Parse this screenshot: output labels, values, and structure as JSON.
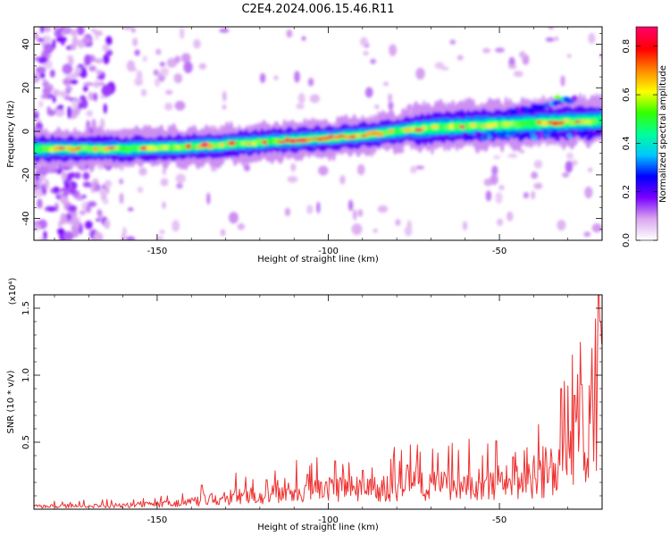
{
  "title": "C2E4.2024.006.15.46.R11",
  "chart_data": [
    {
      "type": "heatmap",
      "xlabel": "Height of straight line (km)",
      "ylabel": "Frequency (Hz)",
      "xlim": [
        -186,
        -20
      ],
      "ylim": [
        -50,
        48
      ],
      "x_ticks": [
        -150,
        -100,
        -50
      ],
      "y_ticks": [
        -40,
        -20,
        0,
        20,
        40
      ],
      "ridge": [
        [
          -186,
          -8
        ],
        [
          -160,
          -8
        ],
        [
          -140,
          -7
        ],
        [
          -120,
          -5
        ],
        [
          -100,
          -3
        ],
        [
          -85,
          -1
        ],
        [
          -75,
          1
        ],
        [
          -65,
          2
        ],
        [
          -50,
          3
        ],
        [
          -35,
          4
        ],
        [
          -20,
          5
        ]
      ],
      "colorbar": {
        "label": "Normalized spectral amplitude",
        "range": [
          0.0,
          0.88
        ],
        "ticks": [
          0.0,
          0.2,
          0.4,
          0.6,
          0.8
        ],
        "colors": [
          "#ffffff",
          "#d9a6f0",
          "#7a00ff",
          "#0000ff",
          "#00c8ff",
          "#00ff9a",
          "#33ff00",
          "#ffff00",
          "#ff8800",
          "#ff0000",
          "#ff0066"
        ]
      },
      "line_color": "#ff3333"
    },
    {
      "type": "line",
      "xlabel": "Height of straight line (km)",
      "ylabel": "SNR (10 * v/v)",
      "multiplier": "(x10⁴)",
      "xlim": [
        -186,
        -20
      ],
      "ylim": [
        0,
        1.6
      ],
      "x_ticks": [
        -150,
        -100,
        -50
      ],
      "y_ticks": [
        0.5,
        1.0,
        1.5
      ],
      "line_color": "#ee3333",
      "anchors": [
        [
          -186,
          0.03
        ],
        [
          -160,
          0.04
        ],
        [
          -145,
          0.06
        ],
        [
          -135,
          0.1
        ],
        [
          -125,
          0.14
        ],
        [
          -115,
          0.16
        ],
        [
          -105,
          0.2
        ],
        [
          -95,
          0.22
        ],
        [
          -85,
          0.22
        ],
        [
          -75,
          0.25
        ],
        [
          -65,
          0.26
        ],
        [
          -55,
          0.27
        ],
        [
          -45,
          0.3
        ],
        [
          -40,
          0.32
        ],
        [
          -35,
          0.36
        ],
        [
          -31,
          0.5
        ],
        [
          -28,
          0.62
        ],
        [
          -25,
          0.7
        ],
        [
          -22,
          0.95
        ],
        [
          -20,
          1.2
        ]
      ],
      "peaks": [
        [
          -180,
          0.06
        ],
        [
          -166,
          0.07
        ],
        [
          -154,
          0.08
        ],
        [
          -147,
          0.1
        ],
        [
          -137,
          0.18
        ],
        [
          -127,
          0.27
        ],
        [
          -118,
          0.22
        ],
        [
          -106,
          0.26
        ],
        [
          -98,
          0.36
        ],
        [
          -90,
          0.29
        ],
        [
          -81,
          0.39
        ],
        [
          -77,
          0.33
        ],
        [
          -74,
          0.48
        ],
        [
          -68,
          0.42
        ],
        [
          -62,
          0.44
        ],
        [
          -55,
          0.4
        ],
        [
          -51,
          0.51
        ],
        [
          -46,
          0.39
        ],
        [
          -42,
          0.46
        ],
        [
          -35,
          0.45
        ],
        [
          -32,
          0.9
        ],
        [
          -30,
          0.92
        ],
        [
          -28,
          0.85
        ],
        [
          -26,
          0.93
        ],
        [
          -23,
          1.2
        ],
        [
          -22,
          1.42
        ],
        [
          -21,
          1.6
        ],
        [
          -20.5,
          1.4
        ]
      ]
    }
  ]
}
